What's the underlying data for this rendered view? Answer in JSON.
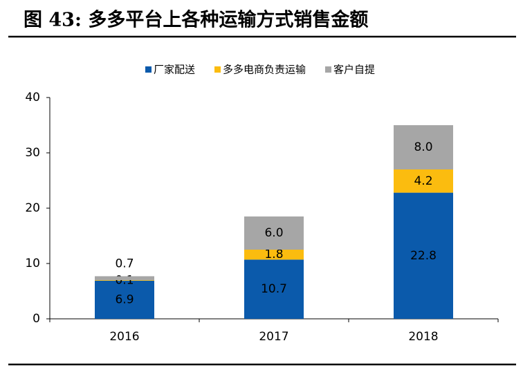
{
  "chart_data": {
    "type": "stacked_bar",
    "title": "图 43: 多多平台上各种运输方式销售金额",
    "categories": [
      "2016",
      "2017",
      "2018"
    ],
    "series": [
      {
        "name": "厂家配送",
        "color": "#0b5aab",
        "values": [
          6.9,
          10.7,
          22.8
        ]
      },
      {
        "name": "多多电商负责运输",
        "color": "#fbbc0f",
        "values": [
          0.1,
          1.8,
          4.2
        ]
      },
      {
        "name": "客户自提",
        "color": "#a6a6a6",
        "values": [
          0.7,
          6.0,
          8.0
        ],
        "value_labels": [
          "0.7",
          "6.0",
          "8.0"
        ]
      }
    ],
    "ylim": [
      0,
      40
    ],
    "yticks": [
      0,
      10,
      20,
      30,
      40
    ],
    "grid": false,
    "legend": "top"
  }
}
